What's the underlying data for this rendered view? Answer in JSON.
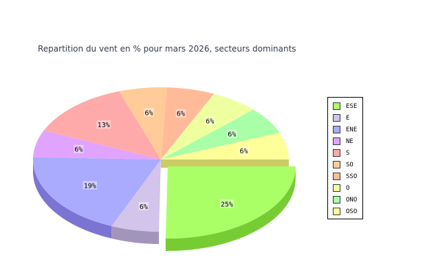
{
  "chart_data": {
    "type": "pie",
    "title": "Repartition du vent en % pour mars 2026, secteurs dominants",
    "slices": [
      {
        "name": "ESE",
        "value": 25,
        "label": "25%",
        "color": "#aaff66",
        "side_color": "#77cc33",
        "exploded": true
      },
      {
        "name": "E",
        "value": 6,
        "label": "6%",
        "color": "#d2c4ea",
        "side_color": "#a295bb"
      },
      {
        "name": "ENE",
        "value": 19,
        "label": "19%",
        "color": "#aaaaff",
        "side_color": "#7b74d2"
      },
      {
        "name": "NE",
        "value": 6,
        "label": "6%",
        "color": "#e0a4ff"
      },
      {
        "name": "S",
        "value": 13,
        "label": "13%",
        "color": "#ffaaaa"
      },
      {
        "name": "SO",
        "value": 6,
        "label": "6%",
        "color": "#ffcc99"
      },
      {
        "name": "SSO",
        "value": 6,
        "label": "6%",
        "color": "#ffbb99"
      },
      {
        "name": "O",
        "value": 6,
        "label": "6%",
        "color": "#eeffa0"
      },
      {
        "name": "ONO",
        "value": 6,
        "label": "6%",
        "color": "#a8ffa8"
      },
      {
        "name": "OSO",
        "value": 6,
        "label": "6%",
        "color": "#ffff99",
        "side_color": "#cccc66"
      }
    ],
    "legend_position": "right"
  }
}
